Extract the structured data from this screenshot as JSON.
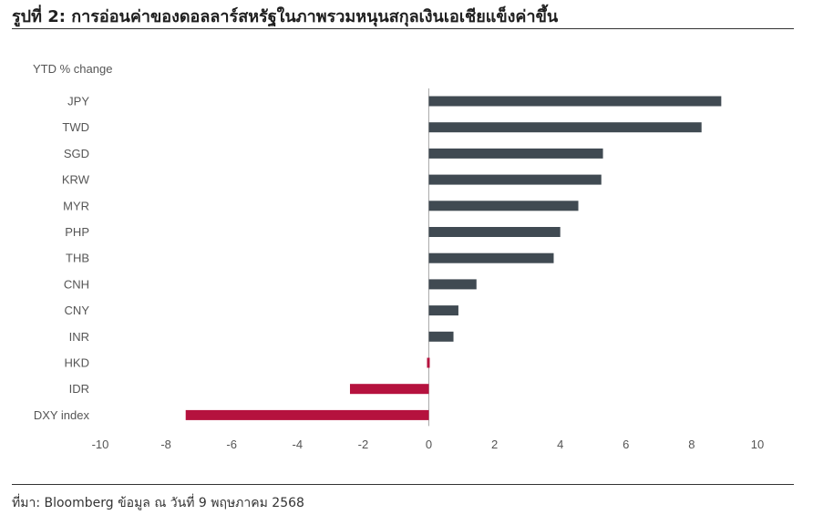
{
  "header": {
    "title": "รูปที่ 2: การอ่อนค่าของดอลลาร์สหรัฐในภาพรวมหนุนสกุลเงินเอเชียแข็งค่าขึ้น"
  },
  "footer": {
    "source": "ที่มา: Bloomberg ข้อมูล ณ วันที่ 9 พฤษภาคม 2568"
  },
  "chart_data": {
    "type": "bar",
    "orientation": "horizontal",
    "title": "",
    "xlabel": "",
    "ylabel": "YTD % change",
    "categories": [
      "JPY",
      "TWD",
      "SGD",
      "KRW",
      "MYR",
      "PHP",
      "THB",
      "CNH",
      "CNY",
      "INR",
      "HKD",
      "IDR",
      "DXY index"
    ],
    "values": [
      8.9,
      8.3,
      5.3,
      5.25,
      4.55,
      4.0,
      3.8,
      1.45,
      0.9,
      0.75,
      -0.05,
      -2.4,
      -7.4
    ],
    "xlim": [
      -10,
      10
    ],
    "xticks": [
      -10,
      -8,
      -6,
      -4,
      -2,
      0,
      2,
      4,
      6,
      8,
      10
    ],
    "grid": false,
    "colors": {
      "positive": "#404a52",
      "negative": "#b5123e",
      "zero_line": "#aaaaaa"
    }
  }
}
